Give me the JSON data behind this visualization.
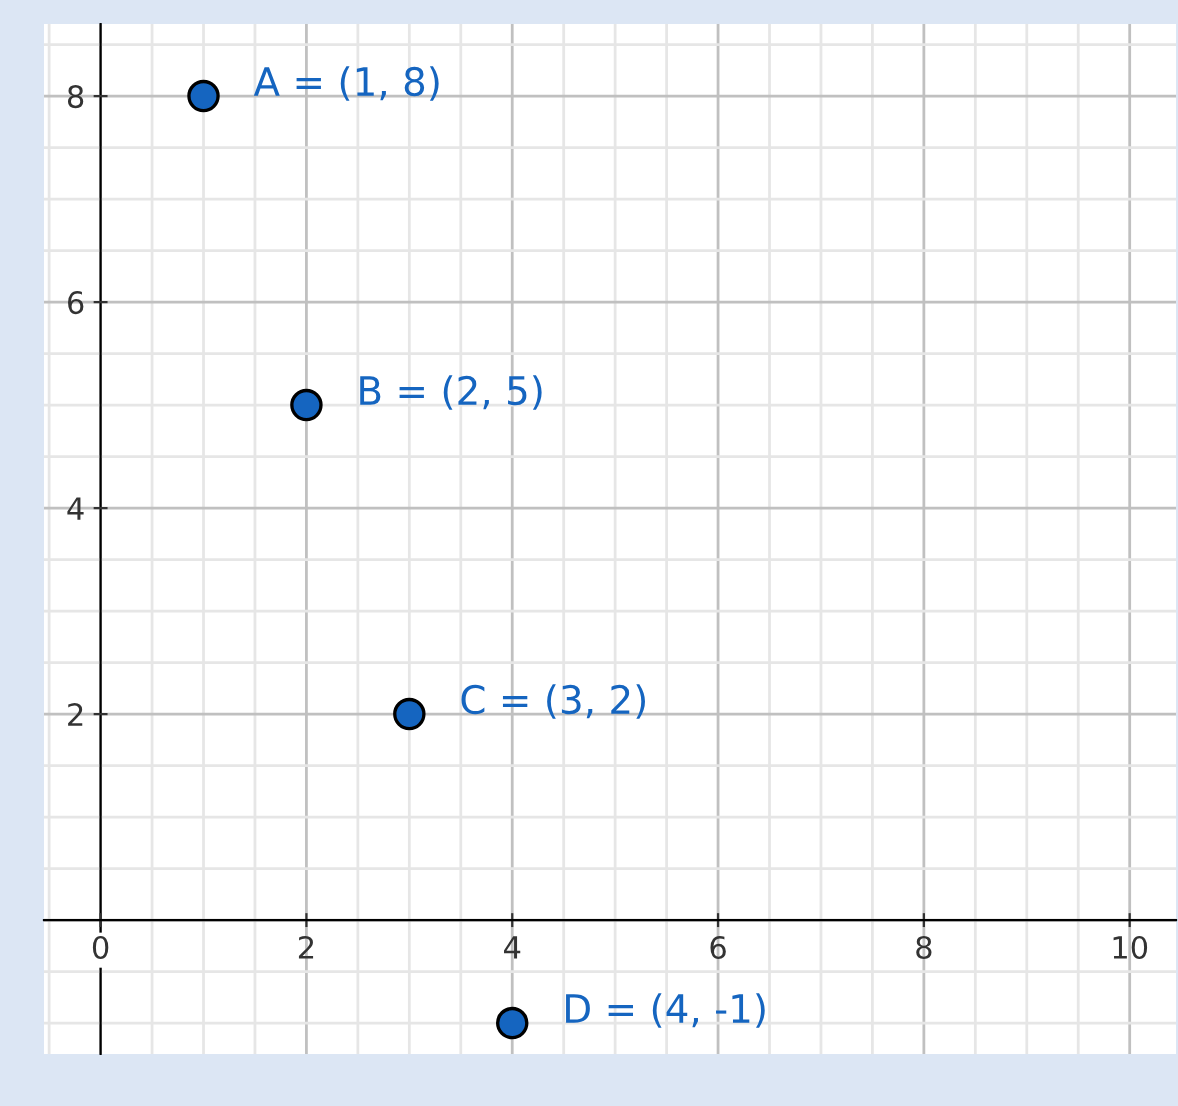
{
  "chart_data": {
    "type": "scatter",
    "x": [
      1,
      2,
      3,
      4
    ],
    "series": [
      {
        "color": "#1565c0",
        "values": [
          8,
          5,
          2,
          -1
        ]
      }
    ],
    "marker": "circle",
    "xlim": [
      -0.55,
      10.45
    ],
    "ylim": [
      -1.3,
      8.7
    ],
    "xticks": [
      0,
      2,
      4,
      6,
      8,
      10
    ],
    "yticks": [
      2,
      4,
      6,
      8
    ],
    "grid": true,
    "annotations": [
      {
        "text": "A = (1, 8)",
        "x": 1,
        "y": 8
      },
      {
        "text": "B = (2, 5)",
        "x": 2,
        "y": 5
      },
      {
        "text": "C = (3, 2)",
        "x": 3,
        "y": 2
      },
      {
        "text": "D = (4, -1)",
        "x": 4,
        "y": -1
      }
    ]
  }
}
